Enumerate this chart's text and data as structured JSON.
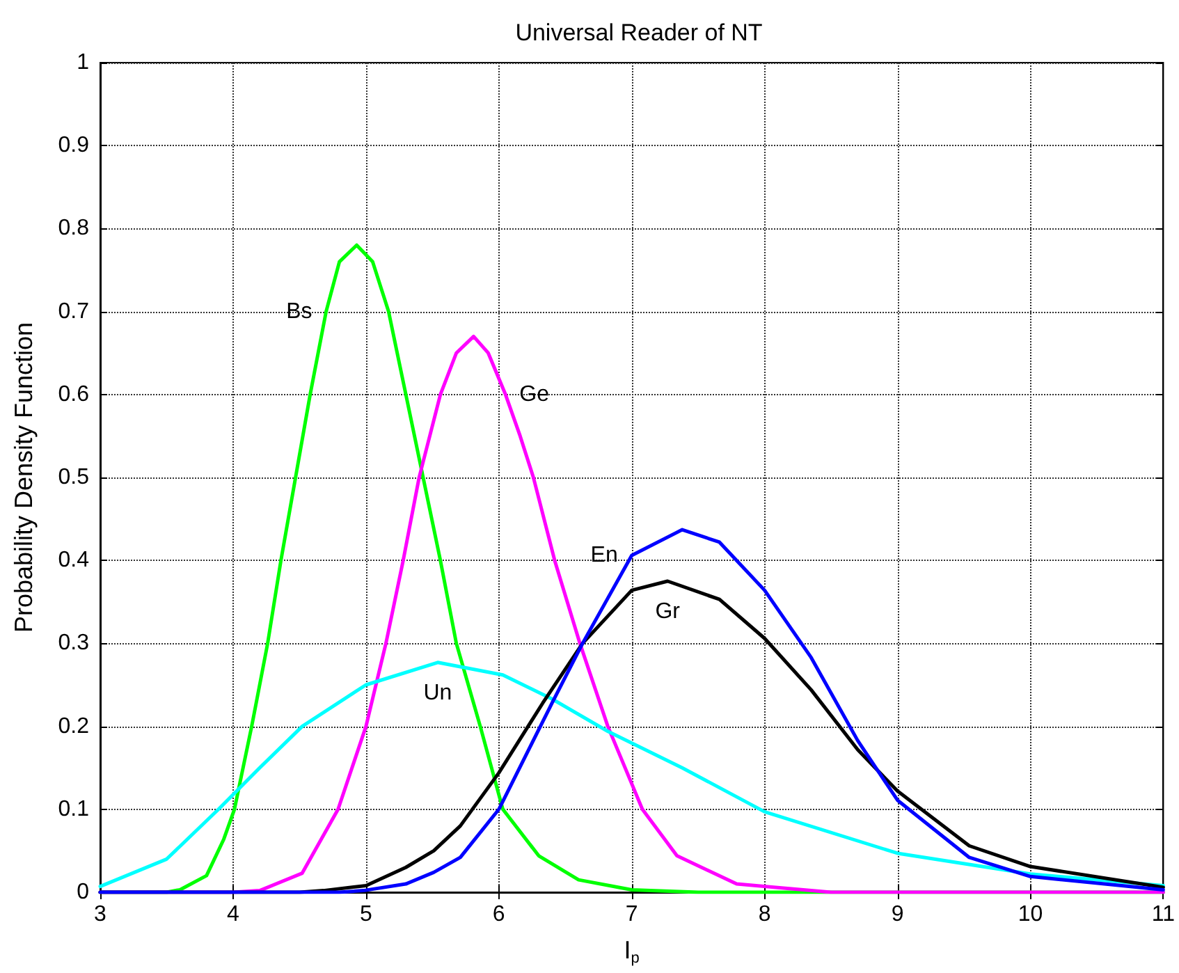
{
  "chart_data": {
    "type": "line",
    "title": "Universal Reader of NT",
    "xlabel": "I$_{p}$",
    "ylabel": "Probability Density Function",
    "xlim": [
      3,
      11
    ],
    "xticks": [
      3,
      4,
      5,
      6,
      7,
      8,
      9,
      10,
      11
    ],
    "ylim": [
      0,
      1
    ],
    "yticks": [
      0,
      0.1,
      0.2,
      0.3,
      0.4,
      0.5,
      0.6,
      0.7,
      0.8,
      0.9,
      1
    ],
    "grid": true,
    "legend": false,
    "marker": "none",
    "line_style": "solid",
    "series": [
      {
        "name": "Bs",
        "color": "#00ff00",
        "x": [
          3,
          3.5,
          3.6,
          3.8,
          3.93,
          4.01,
          4.14,
          4.26,
          4.36,
          4.47,
          4.58,
          4.7,
          4.8,
          4.93,
          5.05,
          5.17,
          5.3,
          5.43,
          5.56,
          5.68,
          5.86,
          6.03,
          6.3,
          6.6,
          7,
          7.5,
          11
        ],
        "values": [
          0,
          0,
          0.003,
          0.02,
          0.064,
          0.1,
          0.2,
          0.3,
          0.4,
          0.5,
          0.6,
          0.7,
          0.76,
          0.78,
          0.76,
          0.7,
          0.6,
          0.5,
          0.4,
          0.3,
          0.2,
          0.1,
          0.044,
          0.015,
          0.003,
          0,
          0
        ]
      },
      {
        "name": "Ge",
        "color": "#ff00ff",
        "x": [
          3,
          4,
          4.2,
          4.52,
          4.79,
          5,
          5.15,
          5.28,
          5.4,
          5.56,
          5.68,
          5.81,
          5.92,
          6.05,
          6.16,
          6.26,
          6.42,
          6.61,
          6.82,
          7.08,
          7.34,
          7.79,
          8.5,
          11
        ],
        "values": [
          0,
          0,
          0.002,
          0.023,
          0.1,
          0.2,
          0.3,
          0.4,
          0.5,
          0.6,
          0.65,
          0.67,
          0.65,
          0.6,
          0.55,
          0.5,
          0.4,
          0.3,
          0.2,
          0.1,
          0.044,
          0.01,
          0,
          0
        ]
      },
      {
        "name": "Un",
        "color": "#00ffff",
        "x": [
          3,
          3.5,
          3.89,
          4.2,
          4.52,
          5,
          5.54,
          6.03,
          6.4,
          6.82,
          7.38,
          8,
          9,
          10,
          11
        ],
        "values": [
          0.007,
          0.04,
          0.1,
          0.15,
          0.2,
          0.25,
          0.277,
          0.262,
          0.233,
          0.194,
          0.15,
          0.097,
          0.047,
          0.022,
          0.008
        ]
      },
      {
        "name": "Gr",
        "color": "#000000",
        "x": [
          3,
          4.5,
          4.68,
          5,
          5.3,
          5.51,
          5.71,
          6,
          6.33,
          6.63,
          7,
          7.27,
          7.66,
          8,
          8.35,
          8.7,
          9,
          9.54,
          10,
          11
        ],
        "values": [
          0,
          0,
          0.002,
          0.008,
          0.03,
          0.05,
          0.08,
          0.144,
          0.228,
          0.3,
          0.364,
          0.375,
          0.353,
          0.306,
          0.244,
          0.172,
          0.122,
          0.056,
          0.031,
          0.006
        ]
      },
      {
        "name": "En",
        "color": "#0000ff",
        "x": [
          3,
          4.8,
          4.98,
          5.3,
          5.51,
          5.71,
          6,
          6.4,
          6.63,
          7,
          7.38,
          7.66,
          8,
          8.35,
          8.7,
          9,
          9.54,
          10,
          11
        ],
        "values": [
          0,
          0,
          0.002,
          0.01,
          0.024,
          0.042,
          0.1,
          0.228,
          0.3,
          0.406,
          0.437,
          0.422,
          0.364,
          0.283,
          0.183,
          0.111,
          0.042,
          0.019,
          0.003
        ]
      }
    ]
  }
}
